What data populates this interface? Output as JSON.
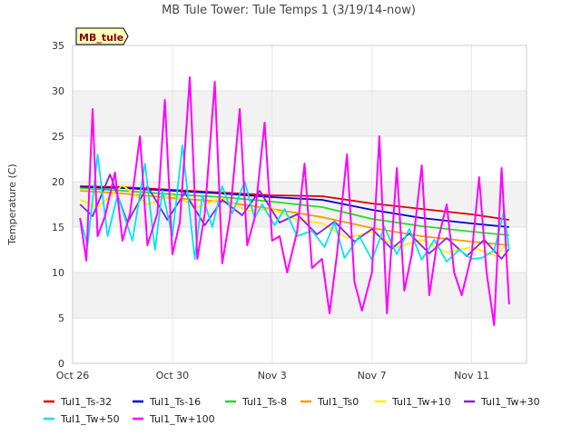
{
  "chart_data": {
    "type": "line",
    "title": "MB Tule Tower: Tule Temps 1 (3/19/14-now)",
    "badge": "MB_tule",
    "xlabel": "",
    "ylabel": "Temperature (C)",
    "x_ticks": [
      "Oct 26",
      "Oct 30",
      "Nov 3",
      "Nov 7",
      "Nov 11"
    ],
    "x_tick_days": [
      0,
      4,
      8,
      12,
      16
    ],
    "xlim_days": [
      0,
      18.2
    ],
    "y_ticks": [
      0,
      5,
      10,
      15,
      20,
      25,
      30,
      35
    ],
    "ylim": [
      0,
      35
    ],
    "grid": true,
    "legend_position": "bottom",
    "series": [
      {
        "name": "Tul1_Ts-32",
        "color": "#dd0000",
        "x": [
          0.3,
          2,
          4,
          6,
          8,
          10,
          12,
          14,
          16,
          17.5
        ],
        "y": [
          19.5,
          19.4,
          19.1,
          18.8,
          18.5,
          18.4,
          17.6,
          17.0,
          16.4,
          15.8
        ]
      },
      {
        "name": "Tul1_Ts-16",
        "color": "#0000cc",
        "x": [
          0.3,
          2,
          4,
          6,
          8,
          10,
          12,
          14,
          16,
          17.5
        ],
        "y": [
          19.4,
          19.3,
          19.0,
          18.7,
          18.3,
          18.0,
          16.9,
          16.0,
          15.4,
          15.0
        ]
      },
      {
        "name": "Tul1_Ts-8",
        "color": "#22dd22",
        "x": [
          0.3,
          2,
          4,
          6,
          8,
          10,
          12,
          14,
          16,
          17.5
        ],
        "y": [
          19.3,
          19.0,
          18.6,
          18.3,
          17.8,
          17.2,
          15.9,
          15.1,
          14.5,
          14.1
        ]
      },
      {
        "name": "Tul1_Ts0",
        "color": "#ff9900",
        "x": [
          0.3,
          2,
          4,
          6,
          8,
          10,
          12,
          14,
          16,
          17.5
        ],
        "y": [
          19.0,
          18.7,
          18.2,
          17.8,
          17.0,
          16.1,
          14.9,
          14.0,
          13.4,
          13.0
        ]
      },
      {
        "name": "Tul1_Tw+10",
        "color": "#ffee00",
        "x": [
          0.3,
          1,
          2,
          3,
          4,
          5,
          6,
          7,
          8,
          9,
          10,
          11,
          12,
          13,
          14,
          15,
          16,
          17,
          17.5
        ],
        "y": [
          18.0,
          17.2,
          19.6,
          17.5,
          18.5,
          17.2,
          18.2,
          16.8,
          17.0,
          15.8,
          15.4,
          13.8,
          14.5,
          12.8,
          13.6,
          12.2,
          12.8,
          11.8,
          13.6
        ]
      },
      {
        "name": "Tul1_Tw+30",
        "color": "#8822dd",
        "x": [
          0.3,
          0.8,
          1.5,
          2.2,
          3,
          3.8,
          4.5,
          5.3,
          6,
          6.8,
          7.5,
          8.3,
          9,
          9.8,
          10.5,
          11.3,
          12,
          12.8,
          13.5,
          14.3,
          15,
          15.8,
          16.5,
          17.2,
          17.5
        ],
        "y": [
          17.5,
          16.2,
          20.8,
          15.5,
          19.5,
          15.8,
          18.8,
          15.2,
          18.0,
          16.3,
          19.0,
          15.5,
          16.4,
          14.2,
          15.6,
          13.4,
          14.8,
          12.6,
          14.3,
          12.1,
          13.8,
          11.8,
          13.6,
          11.5,
          12.6
        ]
      },
      {
        "name": "Tul1_Tw+50",
        "color": "#00e5ee",
        "x": [
          0.3,
          0.6,
          1,
          1.4,
          1.8,
          2.4,
          2.9,
          3.3,
          3.6,
          4.0,
          4.4,
          4.9,
          5.2,
          5.6,
          6.0,
          6.4,
          6.9,
          7.3,
          7.6,
          8.1,
          8.5,
          9.0,
          9.6,
          10.1,
          10.5,
          10.9,
          11.5,
          12.0,
          12.5,
          13.0,
          13.5,
          14.0,
          14.5,
          15.0,
          15.5,
          16.0,
          16.4,
          16.9,
          17.3,
          17.5
        ],
        "y": [
          16.0,
          13.0,
          23.0,
          14.0,
          18.5,
          13.5,
          22.0,
          12.5,
          19.0,
          14.0,
          24.0,
          11.5,
          18.5,
          15.0,
          19.5,
          16.5,
          20.0,
          16.0,
          17.5,
          15.2,
          17.0,
          14.0,
          14.6,
          12.8,
          15.5,
          11.6,
          14.0,
          11.4,
          15.0,
          12.0,
          14.8,
          11.4,
          13.6,
          11.2,
          12.5,
          11.5,
          11.6,
          12.4,
          16.8,
          12.5
        ]
      },
      {
        "name": "Tul1_Tw+100",
        "color": "#ff00ff",
        "x": [
          0.3,
          0.55,
          0.8,
          1.0,
          1.3,
          1.7,
          2.0,
          2.3,
          2.7,
          3.0,
          3.4,
          3.7,
          4.0,
          4.3,
          4.7,
          5.0,
          5.3,
          5.7,
          6.0,
          6.3,
          6.7,
          7.0,
          7.3,
          7.7,
          8.0,
          8.3,
          8.6,
          9.0,
          9.3,
          9.6,
          10.0,
          10.3,
          10.6,
          11.0,
          11.3,
          11.6,
          12.0,
          12.3,
          12.6,
          13.0,
          13.3,
          13.6,
          14.0,
          14.3,
          14.6,
          15.0,
          15.3,
          15.6,
          16.0,
          16.3,
          16.6,
          16.9,
          17.2,
          17.5
        ],
        "y": [
          16.0,
          11.3,
          28.0,
          14.0,
          16.2,
          21.0,
          13.5,
          16.5,
          25.0,
          13.0,
          16.5,
          29.0,
          12.0,
          15.5,
          31.5,
          11.5,
          16.5,
          31.0,
          11.0,
          16.0,
          28.0,
          13.0,
          16.0,
          26.5,
          13.5,
          14.0,
          10.0,
          14.5,
          22.0,
          10.5,
          11.5,
          5.5,
          12.0,
          23.0,
          9.0,
          5.8,
          10.0,
          25.0,
          5.5,
          21.5,
          8.0,
          12.0,
          21.8,
          7.5,
          13.0,
          17.5,
          10.0,
          7.5,
          12.0,
          20.5,
          10.0,
          4.2,
          21.5,
          6.5
        ]
      }
    ]
  }
}
